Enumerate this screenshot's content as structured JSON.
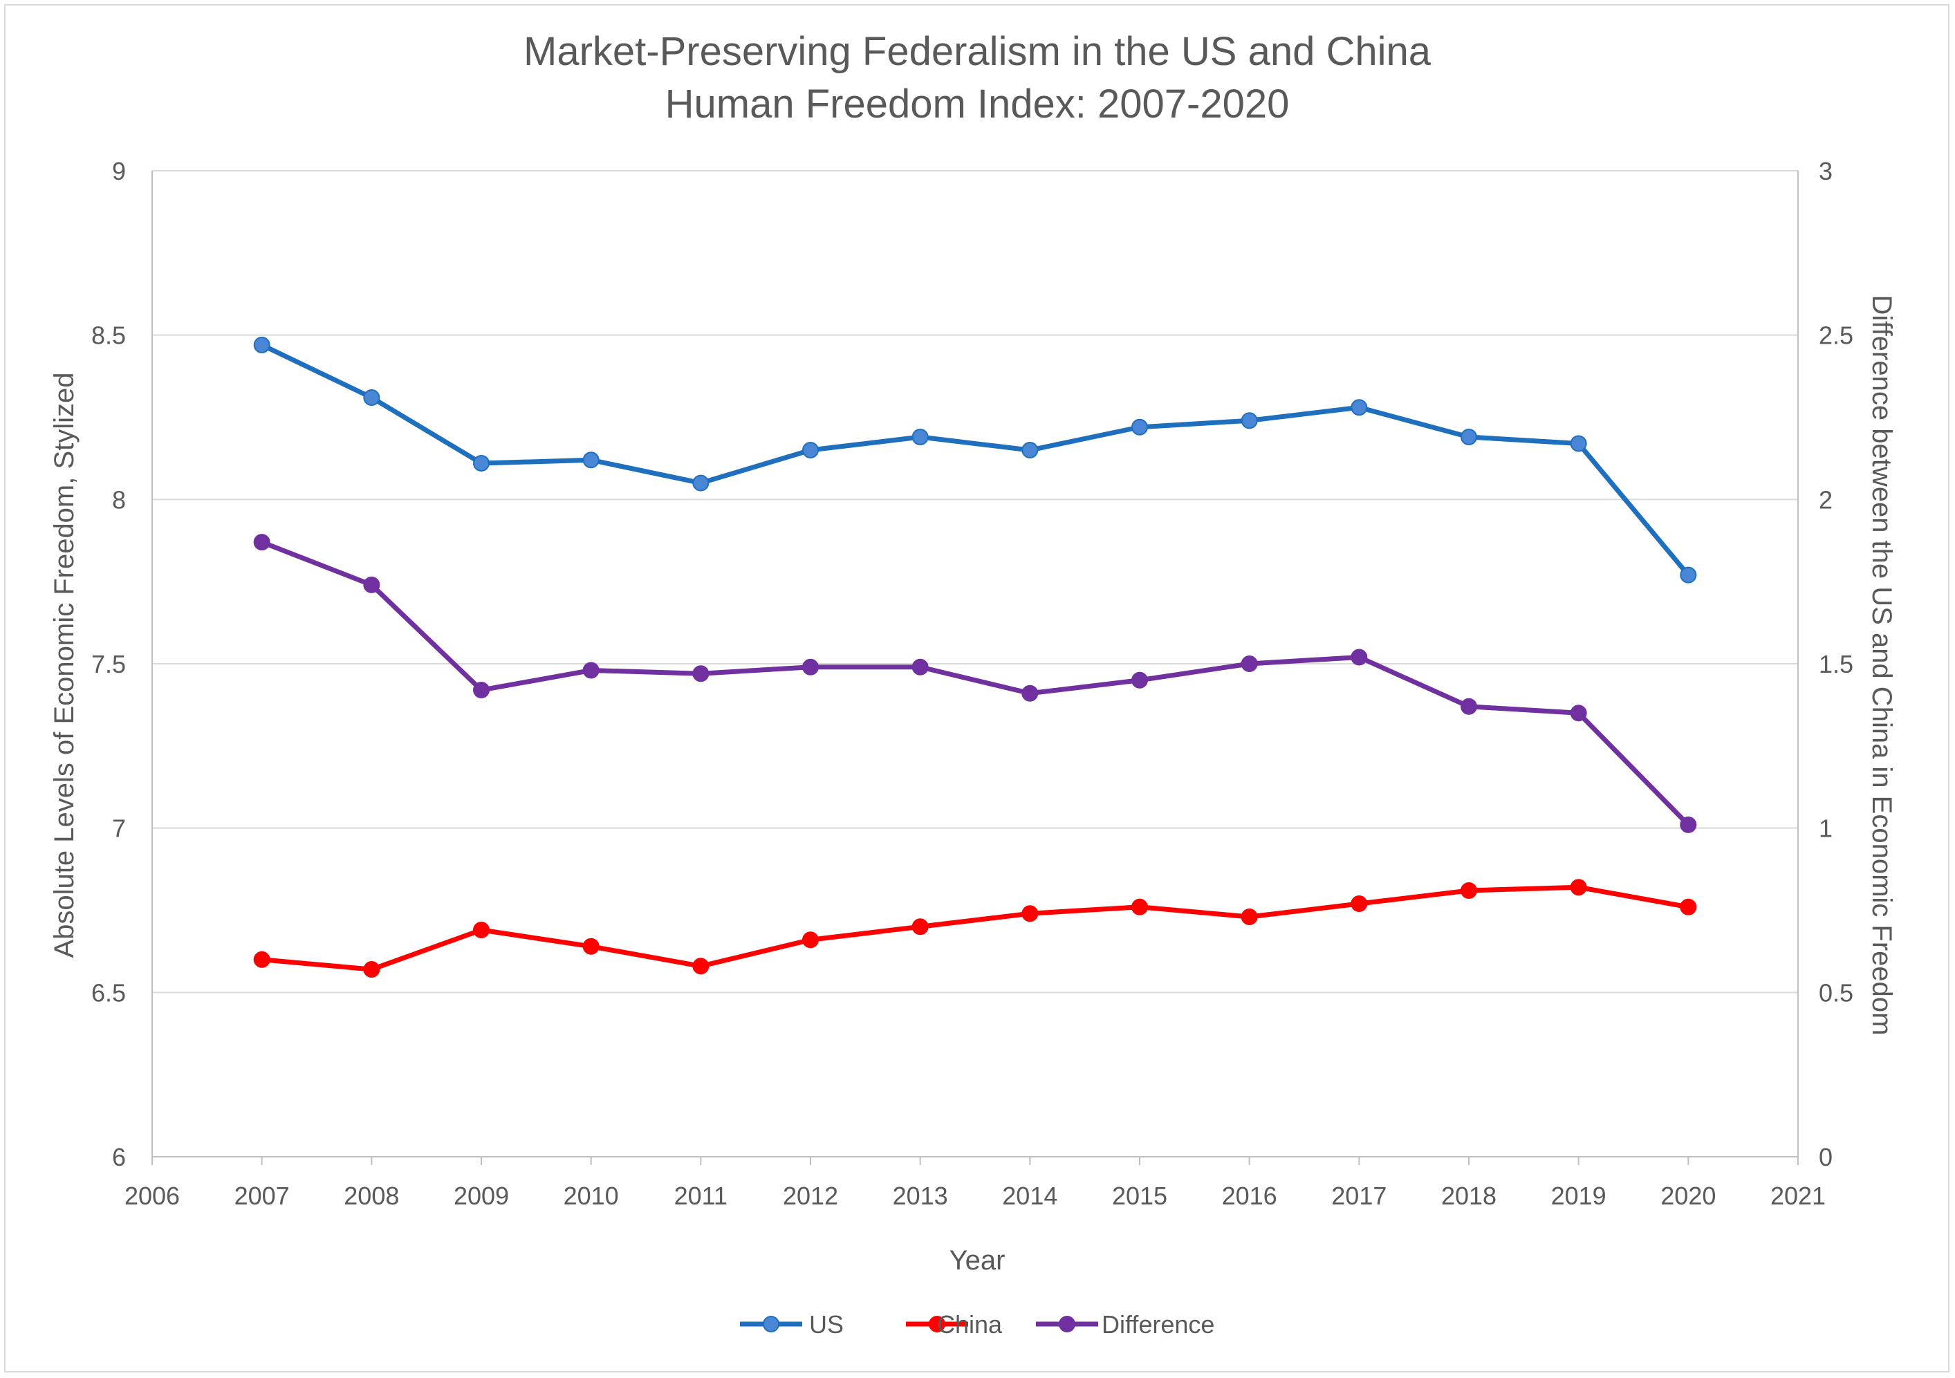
{
  "chart_data": {
    "type": "line",
    "title": "Market-Preserving Federalism in the US and China",
    "subtitle": "Human Freedom Index:  2007-2020",
    "xlabel": "Year",
    "ylabel": "Absolute Levels of Economic Freedom, Stylized",
    "y2label": "Difference between the US and China in Economic Freedom",
    "xlim": [
      2006,
      2021
    ],
    "ylim": [
      6,
      9
    ],
    "y2lim": [
      0,
      3
    ],
    "x_ticks": [
      2006,
      2007,
      2008,
      2009,
      2010,
      2011,
      2012,
      2013,
      2014,
      2015,
      2016,
      2017,
      2018,
      2019,
      2020,
      2021
    ],
    "y_ticks": [
      6,
      6.5,
      7,
      7.5,
      8,
      8.5,
      9
    ],
    "y2_ticks": [
      0,
      0.5,
      1,
      1.5,
      2,
      2.5,
      3
    ],
    "grid": "horizontal",
    "legend_position": "bottom",
    "x": [
      2007,
      2008,
      2009,
      2010,
      2011,
      2012,
      2013,
      2014,
      2015,
      2016,
      2017,
      2018,
      2019,
      2020
    ],
    "series": [
      {
        "name": "US",
        "axis": "left",
        "color": "#1f6fbf",
        "marker_color": "#4a86d6",
        "values": [
          8.47,
          8.31,
          8.11,
          8.12,
          8.05,
          8.15,
          8.19,
          8.15,
          8.22,
          8.24,
          8.28,
          8.19,
          8.17,
          7.77
        ]
      },
      {
        "name": "China",
        "axis": "left",
        "color": "#ff0000",
        "marker_color": "#ff0000",
        "values": [
          6.6,
          6.57,
          6.69,
          6.64,
          6.58,
          6.66,
          6.7,
          6.74,
          6.76,
          6.73,
          6.77,
          6.81,
          6.82,
          6.76
        ]
      },
      {
        "name": "Difference",
        "axis": "right",
        "color": "#7030a0",
        "marker_color": "#7030a0",
        "values": [
          1.87,
          1.74,
          1.42,
          1.48,
          1.47,
          1.49,
          1.49,
          1.41,
          1.45,
          1.5,
          1.52,
          1.37,
          1.35,
          1.01
        ]
      }
    ]
  }
}
